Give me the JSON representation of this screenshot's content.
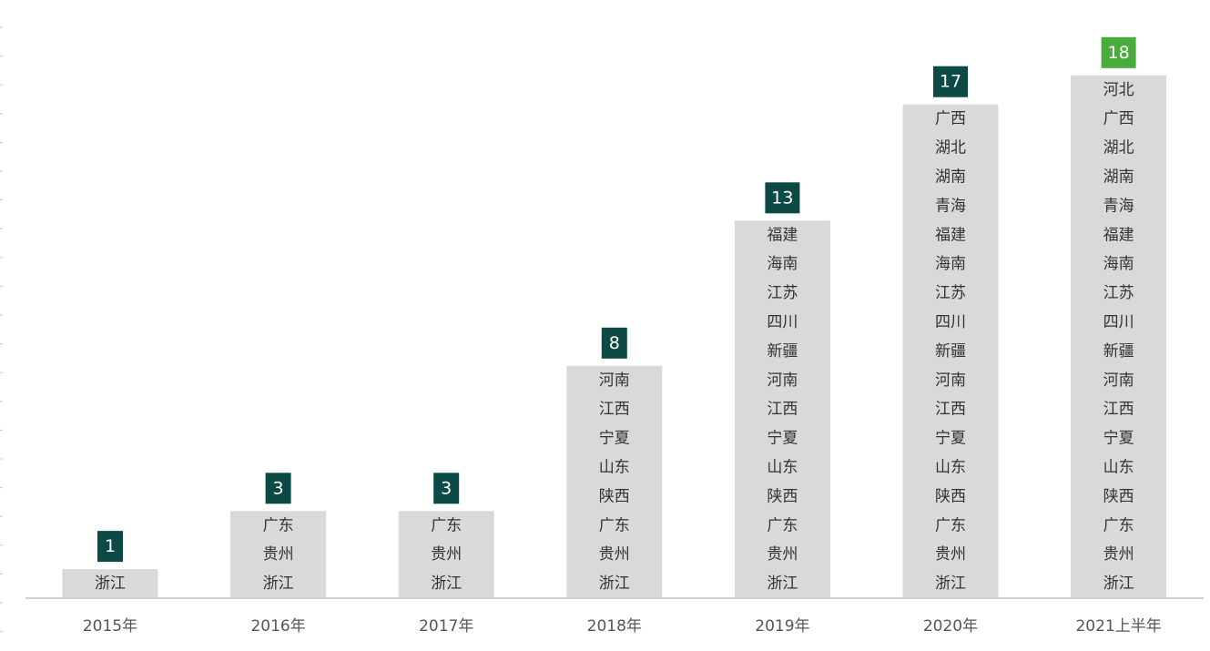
{
  "chart_data": {
    "type": "bar",
    "title": "",
    "xlabel": "",
    "ylabel": "",
    "ylim": [
      0,
      18
    ],
    "grid": false,
    "categories": [
      "2015年",
      "2016年",
      "2017年",
      "2018年",
      "2019年",
      "2020年",
      "2021上半年"
    ],
    "values": [
      1,
      3,
      3,
      8,
      13,
      17,
      18
    ],
    "value_labels": [
      "1",
      "3",
      "3",
      "8",
      "13",
      "17",
      "18"
    ],
    "provinces": [
      [
        "浙江"
      ],
      [
        "广东",
        "贵州",
        "浙江"
      ],
      [
        "广东",
        "贵州",
        "浙江"
      ],
      [
        "河南",
        "江西",
        "宁夏",
        "山东",
        "陕西",
        "广东",
        "贵州",
        "浙江"
      ],
      [
        "福建",
        "海南",
        "江苏",
        "四川",
        "新疆",
        "河南",
        "江西",
        "宁夏",
        "山东",
        "陕西",
        "广东",
        "贵州",
        "浙江"
      ],
      [
        "广西",
        "湖北",
        "湖南",
        "青海",
        "福建",
        "海南",
        "江苏",
        "四川",
        "新疆",
        "河南",
        "江西",
        "宁夏",
        "山东",
        "陕西",
        "广东",
        "贵州",
        "浙江"
      ],
      [
        "河北",
        "广西",
        "湖北",
        "湖南",
        "青海",
        "福建",
        "海南",
        "江苏",
        "四川",
        "新疆",
        "河南",
        "江西",
        "宁夏",
        "山东",
        "陕西",
        "广东",
        "贵州",
        "浙江"
      ]
    ],
    "colors": {
      "bar": "#d9d9d9",
      "badge": "#0d4a45",
      "badge_highlight": "#4aac3c",
      "axis": "#d0d0d0",
      "province_text": "#333333",
      "category_text": "#555555"
    },
    "highlight_index": 6
  }
}
